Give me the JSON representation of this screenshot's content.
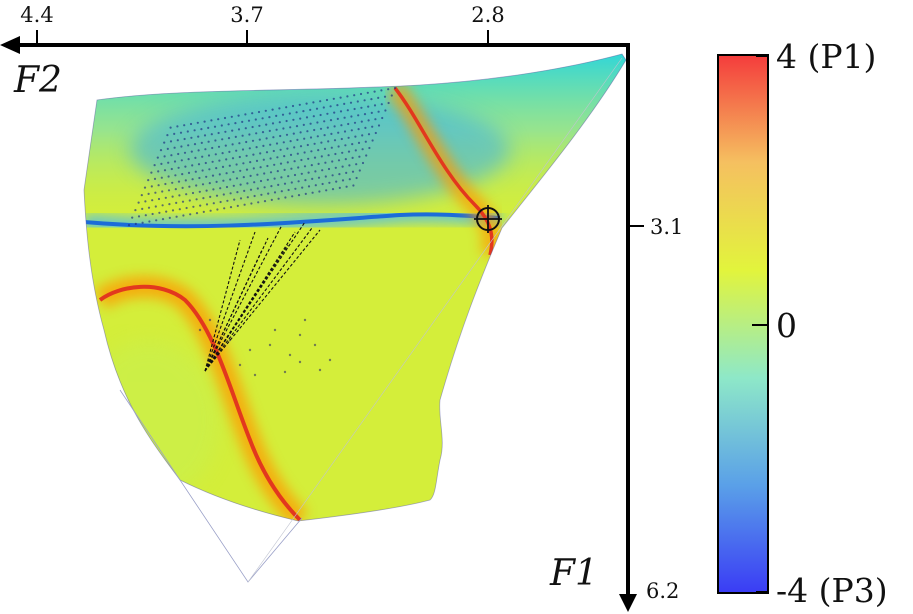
{
  "chart_data": {
    "type": "heatmap",
    "title": "",
    "axes": {
      "top": {
        "label": "F2",
        "ticks": [
          "4.4",
          "3.7",
          "2.8"
        ]
      },
      "right": {
        "label": "F1",
        "ticks": [
          "3.1",
          "6.2"
        ]
      }
    },
    "colorbar": {
      "min": -4,
      "max": 4,
      "labels": [
        {
          "value": 4,
          "text": "4 (P1)"
        },
        {
          "value": 0,
          "text": "0"
        },
        {
          "value": -4,
          "text": "-4 (P3)"
        }
      ],
      "colors": [
        "#3a3cf5",
        "#5aa0e8",
        "#8ee8c8",
        "#e2f43c",
        "#f5c060",
        "#f43c3c"
      ]
    },
    "field_colors": {
      "base": "#d4ee3a",
      "blue_band": "#2080e0",
      "cyan_region": "#22d4e4",
      "red_ridge": "#e2381e",
      "orange_halo": "#ffaa00"
    },
    "marker": {
      "type": "circle-crosshair"
    }
  }
}
